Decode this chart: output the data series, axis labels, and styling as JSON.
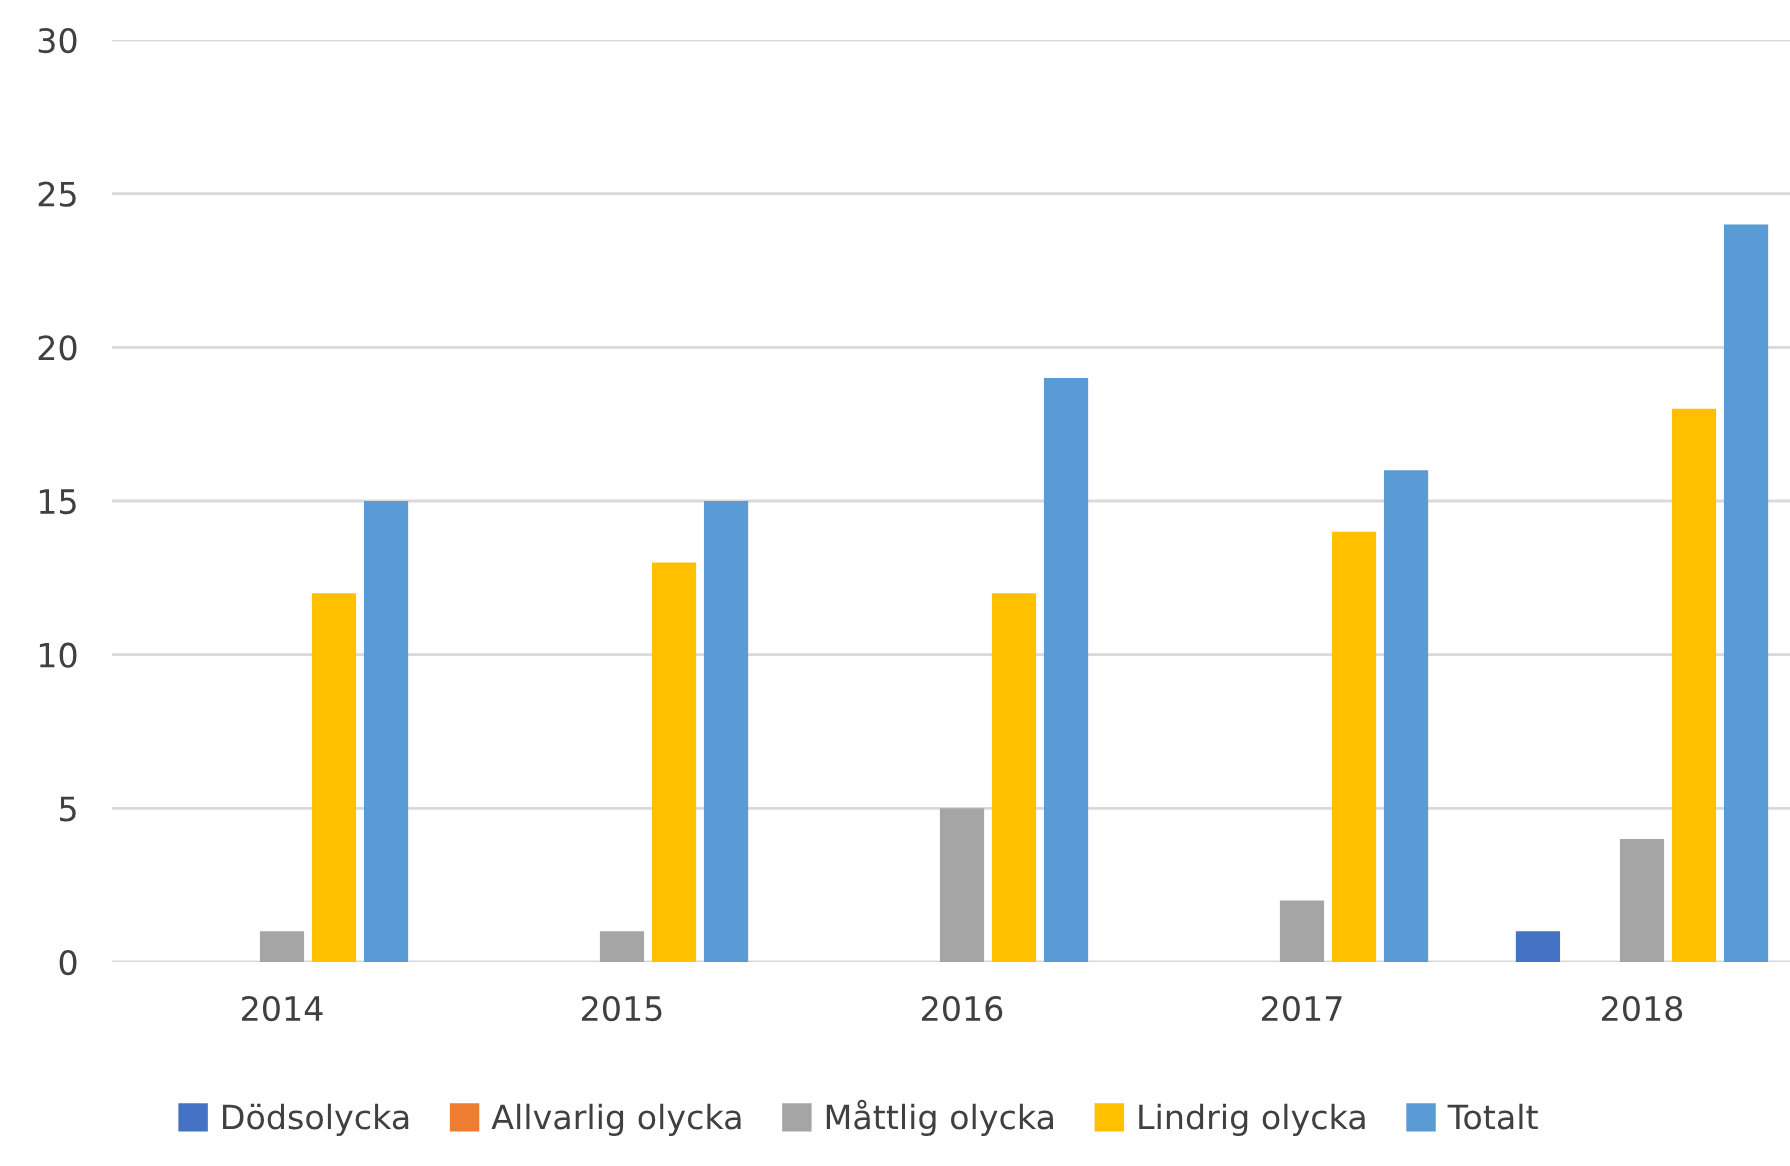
{
  "chart_data": {
    "type": "bar",
    "categories": [
      "2014",
      "2015",
      "2016",
      "2017",
      "2018"
    ],
    "series": [
      {
        "name": "Dödsolycka",
        "color": "#4472c4",
        "values": [
          0,
          0,
          0,
          0,
          1
        ]
      },
      {
        "name": "Allvarlig olycka",
        "color": "#ed7d31",
        "values": [
          0,
          0,
          0,
          0,
          0
        ]
      },
      {
        "name": "Måttlig olycka",
        "color": "#a5a5a5",
        "values": [
          1,
          1,
          5,
          2,
          4
        ]
      },
      {
        "name": "Lindrig olycka",
        "color": "#ffc000",
        "values": [
          12,
          13,
          12,
          14,
          18
        ]
      },
      {
        "name": "Totalt",
        "color": "#5b9bd5",
        "values": [
          15,
          15,
          19,
          16,
          24
        ]
      }
    ],
    "ylim": [
      0,
      30
    ],
    "yticks": [
      0,
      5,
      10,
      15,
      20,
      25,
      30
    ],
    "grid": "y",
    "legend": "bottom"
  }
}
